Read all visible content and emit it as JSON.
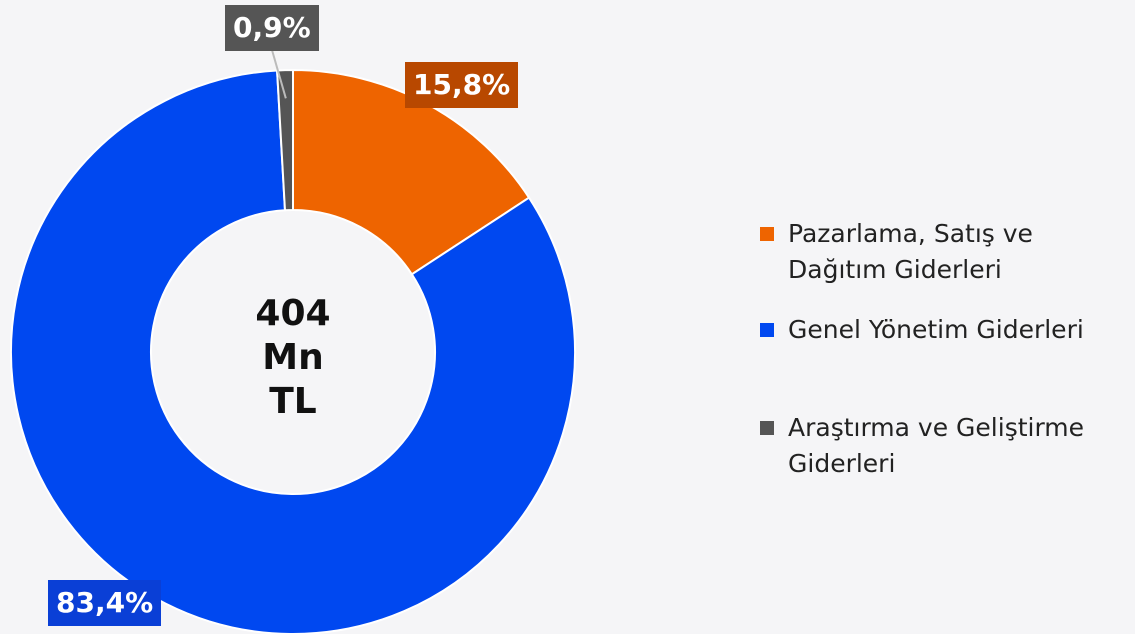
{
  "chart_data": {
    "type": "donut",
    "center_text": "404 Mn TL",
    "categories": [
      "Pazarlama, Satış ve Dağıtım Giderleri",
      "Genel Yönetim Giderleri",
      "Araştırma ve Geliştirme Giderleri"
    ],
    "values": [
      15.8,
      83.4,
      0.9
    ],
    "value_labels": [
      "15,8%",
      "83,4%",
      "0,9%"
    ],
    "colors": [
      "#ee6400",
      "#0048f0",
      "#555555"
    ],
    "label_colors": [
      "#b84800",
      "#0a3fd6",
      "#555555"
    ],
    "legend": "right"
  }
}
